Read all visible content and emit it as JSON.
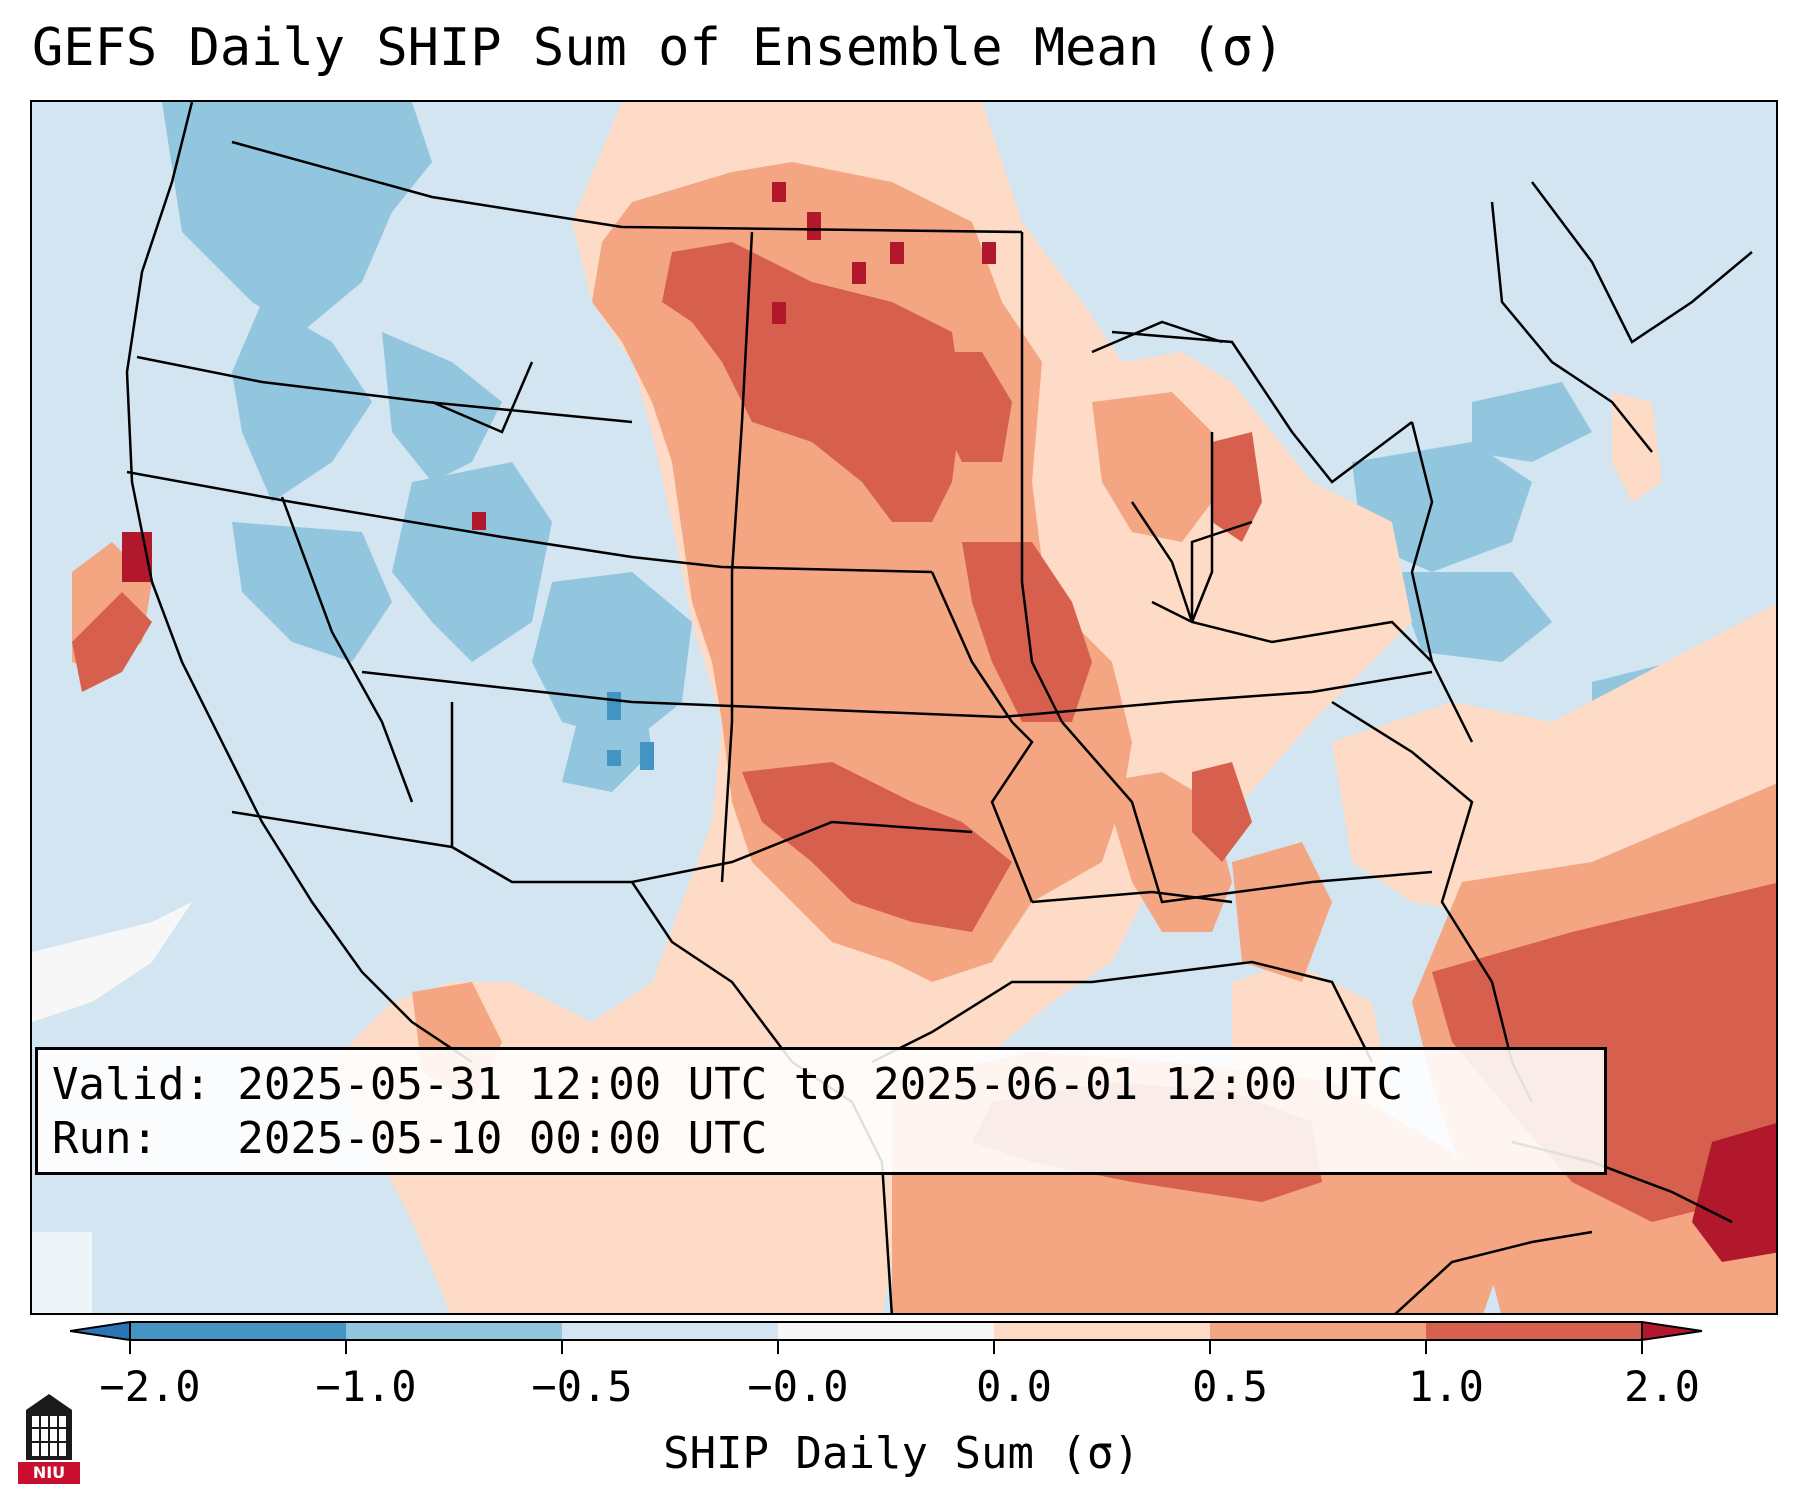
{
  "title": "GEFS Daily SHIP Sum of Ensemble Mean (σ)",
  "info": {
    "valid": "Valid: 2025-05-31 12:00 UTC to 2025-06-01 12:00 UTC",
    "run": "Run:   2025-05-10 00:00 UTC"
  },
  "colorbar": {
    "label": "SHIP Daily Sum (σ)",
    "ticks": [
      "−2.0",
      "−1.0",
      "−0.5",
      "−0.0",
      "0.0",
      "0.5",
      "1.0",
      "2.0"
    ],
    "bins": [
      {
        "range": "< -2.0",
        "color": "#2b75b4"
      },
      {
        "range": "-2.0 to -1.0",
        "color": "#4393c3"
      },
      {
        "range": "-1.0 to -0.5",
        "color": "#92c5de"
      },
      {
        "range": "-0.5 to -0.0",
        "color": "#d2e5f0"
      },
      {
        "range": "-0.0 to 0.0",
        "color": "#f7f7f7"
      },
      {
        "range": "0.0 to 0.5",
        "color": "#fddbc7"
      },
      {
        "range": "0.5 to 1.0",
        "color": "#f4a582"
      },
      {
        "range": "1.0 to 2.0",
        "color": "#d6604d"
      },
      {
        "range": "> 2.0",
        "color": "#b2182b"
      }
    ]
  },
  "logo": {
    "text": "NIU"
  }
}
